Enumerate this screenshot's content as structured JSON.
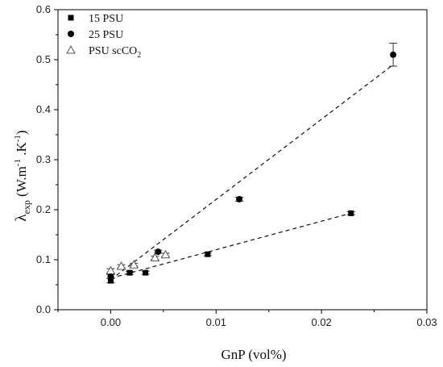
{
  "chart_data": {
    "type": "scatter",
    "xlabel": "GnP (vol%)",
    "ylabel": {
      "main": "λ",
      "sub": "exp",
      "units": " (W.m",
      "sup1": "-1",
      "mid": " .K",
      "sup2": "-1",
      "close": ")"
    },
    "xlim": [
      -0.005,
      0.03
    ],
    "ylim": [
      0.0,
      0.6
    ],
    "x_ticks": [
      0.0,
      0.01,
      0.02,
      0.03
    ],
    "x_tick_labels": [
      "0.00",
      "0.01",
      "0.02",
      "0.03"
    ],
    "y_ticks": [
      0.0,
      0.1,
      0.2,
      0.3,
      0.4,
      0.5,
      0.6
    ],
    "y_tick_labels": [
      "0.0",
      "0.1",
      "0.2",
      "0.3",
      "0.4",
      "0.5",
      "0.6"
    ],
    "grid": false,
    "legend_position": "top-left",
    "series": [
      {
        "name": "15 PSU",
        "marker": "square",
        "points": [
          {
            "x": 0.0,
            "y": 0.058,
            "err": 0.004
          },
          {
            "x": 0.0018,
            "y": 0.074,
            "err": 0.003
          },
          {
            "x": 0.0033,
            "y": 0.074,
            "err": 0.003
          },
          {
            "x": 0.0092,
            "y": 0.111,
            "err": 0.003
          },
          {
            "x": 0.0228,
            "y": 0.193,
            "err": 0.003
          }
        ],
        "fit": {
          "x0": 0.0,
          "y0": 0.063,
          "x1": 0.0228,
          "y1": 0.193
        }
      },
      {
        "name": "25 PSU",
        "marker": "circle",
        "points": [
          {
            "x": 0.0,
            "y": 0.066,
            "err": 0.004
          },
          {
            "x": 0.0045,
            "y": 0.116,
            "err": 0.003
          },
          {
            "x": 0.0122,
            "y": 0.221,
            "err": 0.004
          },
          {
            "x": 0.0268,
            "y": 0.51,
            "err": 0.023
          }
        ],
        "fit": {
          "x0": 0.0,
          "y0": 0.06,
          "x1": 0.0268,
          "y1": 0.49
        }
      },
      {
        "name": "PSU scCO2",
        "label_main": "PSU scCO",
        "label_sub": "2",
        "marker": "triangle-open",
        "points": [
          {
            "x": 0.0,
            "y": 0.078,
            "err": 0.004
          },
          {
            "x": 0.001,
            "y": 0.087,
            "err": 0.003
          },
          {
            "x": 0.0022,
            "y": 0.09,
            "err": 0.003
          },
          {
            "x": 0.0042,
            "y": 0.104,
            "err": 0.003
          },
          {
            "x": 0.0052,
            "y": 0.11,
            "err": 0.003
          }
        ]
      }
    ]
  }
}
